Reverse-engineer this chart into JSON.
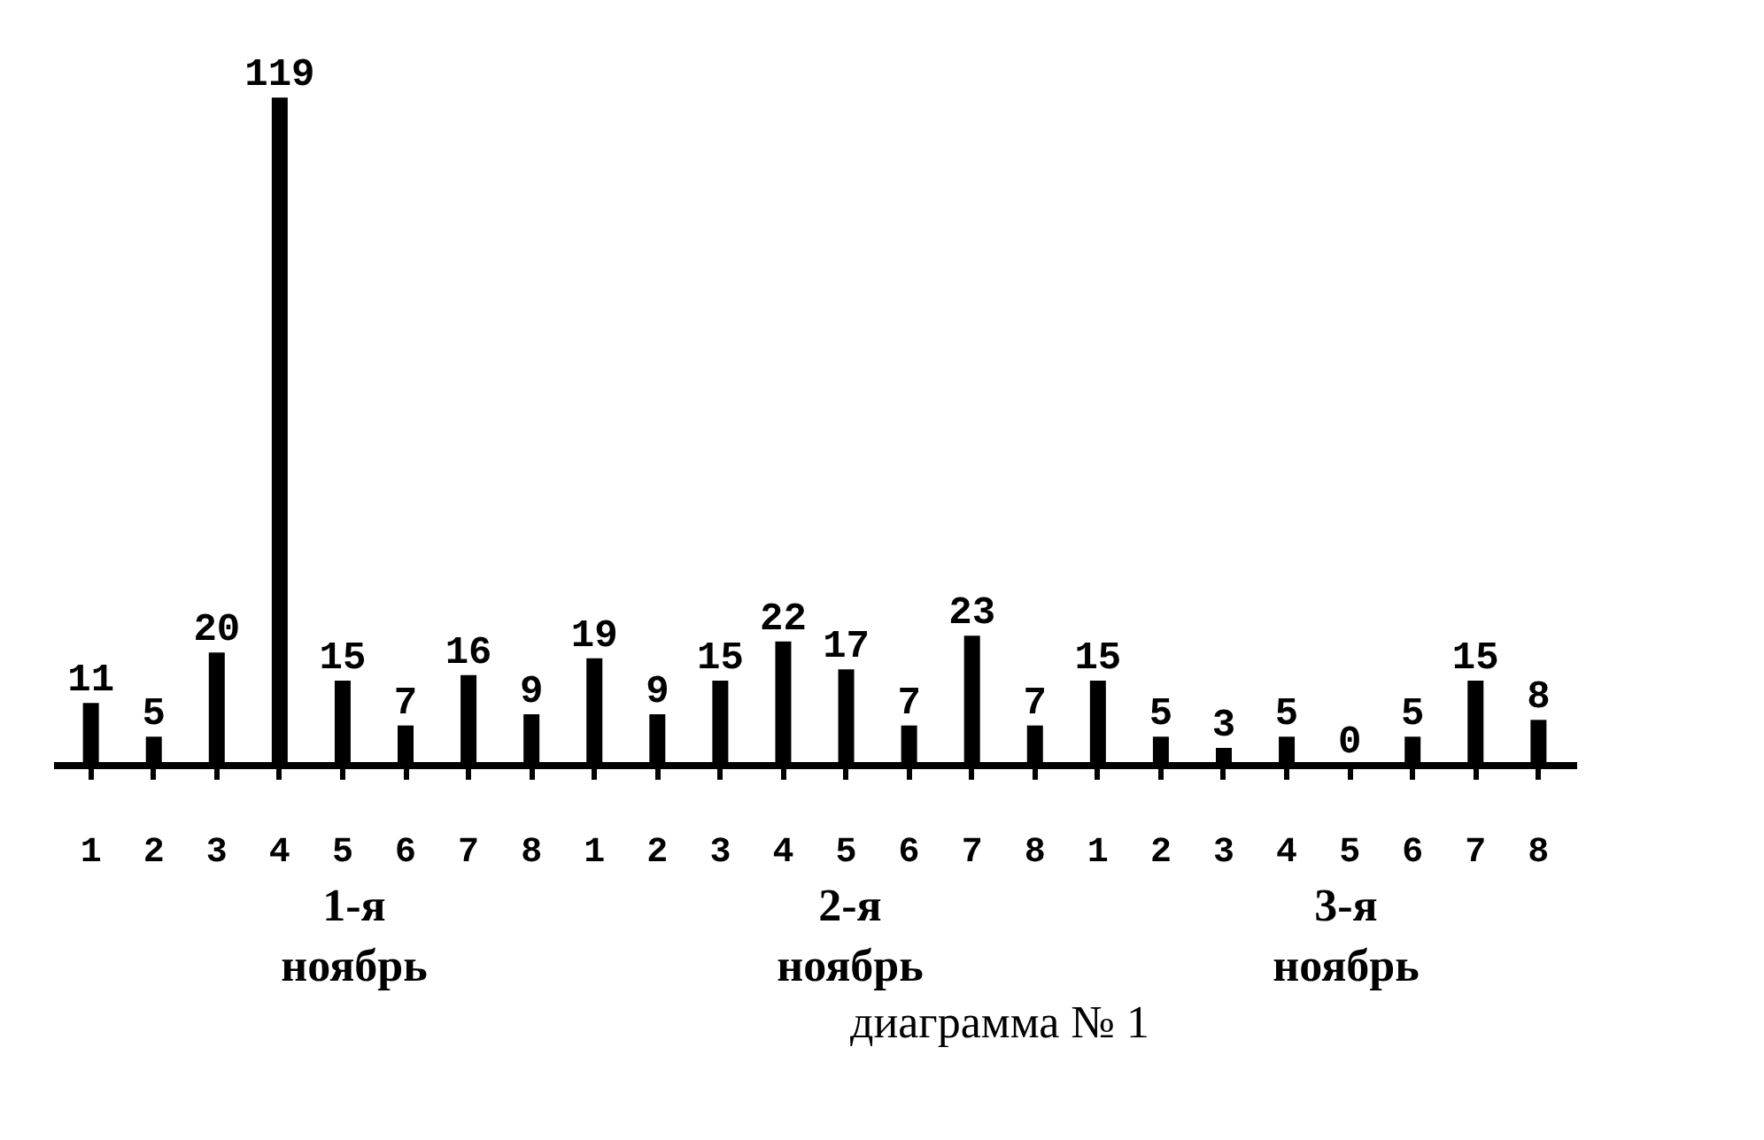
{
  "chart_data": {
    "type": "bar",
    "categories": [
      "1",
      "2",
      "3",
      "4",
      "5",
      "6",
      "7",
      "8",
      "1",
      "2",
      "3",
      "4",
      "5",
      "6",
      "7",
      "8",
      "1",
      "2",
      "3",
      "4",
      "5",
      "6",
      "7",
      "8"
    ],
    "values": [
      11,
      5,
      20,
      119,
      15,
      7,
      16,
      9,
      19,
      9,
      15,
      22,
      17,
      7,
      23,
      7,
      15,
      5,
      3,
      5,
      0,
      5,
      15,
      8
    ],
    "color": "#000000",
    "data_labels": true,
    "annotations": [
      "1-я ноябрь",
      "2-я ноябрь",
      "3-я ноябрь",
      "диаграмма № 1"
    ]
  }
}
